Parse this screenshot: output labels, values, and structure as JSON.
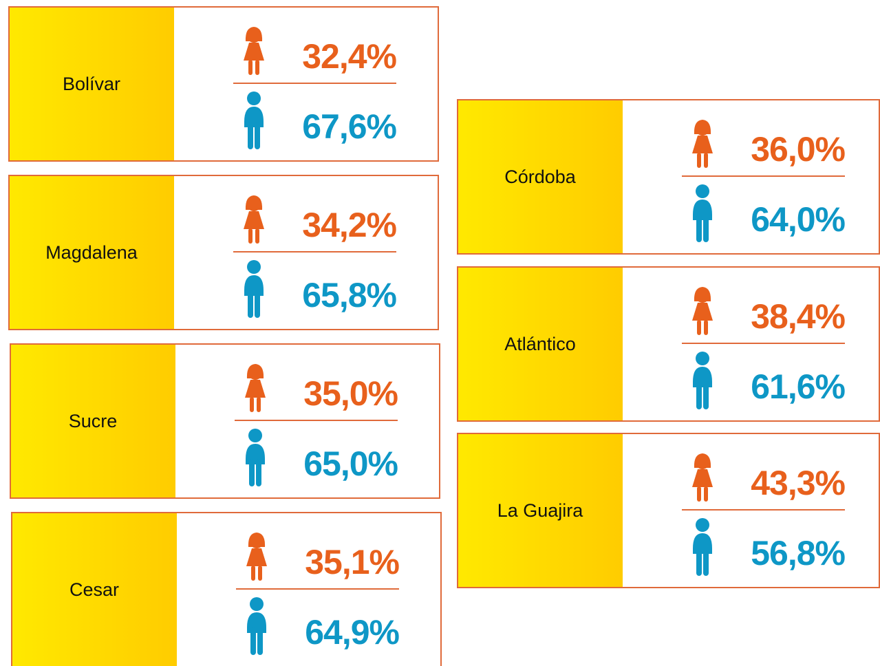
{
  "cards": [
    {
      "name": "Bolívar",
      "female": "32,4%",
      "male": "67,6%"
    },
    {
      "name": "Magdalena",
      "female": "34,2%",
      "male": "65,8%"
    },
    {
      "name": "Sucre",
      "female": "35,0%",
      "male": "65,0%"
    },
    {
      "name": "Cesar",
      "female": "35,1%",
      "male": "64,9%"
    },
    {
      "name": "Córdoba",
      "female": "36,0%",
      "male": "64,0%"
    },
    {
      "name": "Atlántico",
      "female": "38,4%",
      "male": "61,6%"
    },
    {
      "name": "La Guajira",
      "female": "43,3%",
      "male": "56,8%"
    }
  ]
}
